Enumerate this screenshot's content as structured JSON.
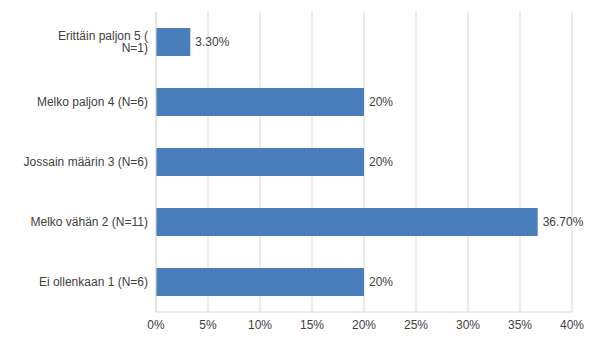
{
  "chart_data": {
    "type": "bar",
    "orientation": "horizontal",
    "categories": [
      "Erittäin paljon 5 ( N=1)",
      "Melko paljon 4 (N=6)",
      "Jossain määrin 3 (N=6)",
      "Melko vähän 2 (N=11)",
      "Ei ollenkaan 1 (N=6)"
    ],
    "values": [
      3.3,
      20,
      20,
      36.7,
      20
    ],
    "value_labels": [
      "3.30%",
      "20%",
      "20%",
      "36.70%",
      "20%"
    ],
    "color": "#4a7ebb",
    "xlim": [
      0,
      40
    ],
    "xticks": [
      {
        "value": 0,
        "label": "0%"
      },
      {
        "value": 5,
        "label": "5%"
      },
      {
        "value": 10,
        "label": "10%"
      },
      {
        "value": 15,
        "label": "15%"
      },
      {
        "value": 20,
        "label": "20%"
      },
      {
        "value": 25,
        "label": "25%"
      },
      {
        "value": 30,
        "label": "30%"
      },
      {
        "value": 35,
        "label": "35%"
      },
      {
        "value": 40,
        "label": "40%"
      }
    ],
    "grid": true,
    "data_labels": true
  }
}
